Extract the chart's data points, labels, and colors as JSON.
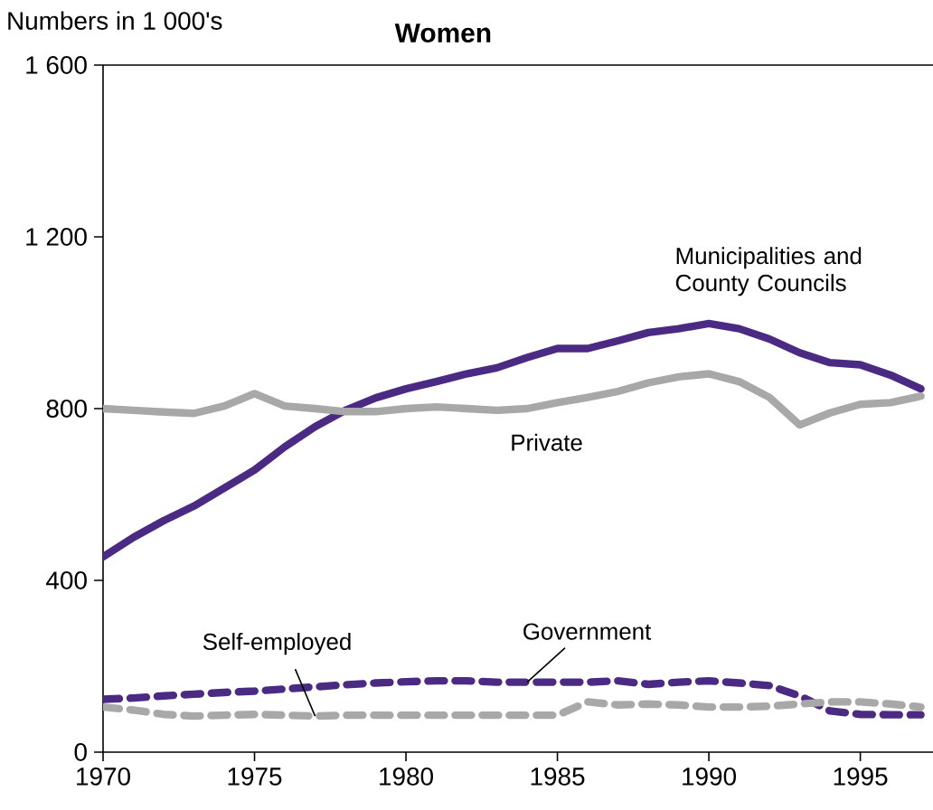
{
  "chart_data": {
    "type": "line",
    "title": "Women",
    "ylabel": "Numbers in 1 000's",
    "x": [
      1970,
      1971,
      1972,
      1973,
      1974,
      1975,
      1976,
      1977,
      1978,
      1979,
      1980,
      1981,
      1982,
      1983,
      1984,
      1985,
      1986,
      1987,
      1988,
      1989,
      1990,
      1991,
      1992,
      1993,
      1994,
      1995,
      1996,
      1997
    ],
    "xlim": [
      1970,
      1997.4
    ],
    "xticks": [
      1970,
      1975,
      1980,
      1985,
      1990,
      1995
    ],
    "ylim": [
      0,
      1600
    ],
    "yticks": [
      0,
      400,
      800,
      {
        "value": 1200,
        "label": "1 200"
      },
      {
        "value": 1600,
        "label": "1 600"
      }
    ],
    "grid": false,
    "marker": "none",
    "series": [
      {
        "color": "#4b2a84",
        "line_style": "solid",
        "values": [
          455,
          500,
          539,
          573,
          615,
          657,
          711,
          758,
          796,
          825,
          846,
          863,
          881,
          895,
          919,
          940,
          940,
          958,
          977,
          986,
          998,
          986,
          962,
          930,
          907,
          902,
          878,
          846
        ]
      },
      {
        "color": "#a8a8a8",
        "line_style": "solid",
        "values": [
          800,
          796,
          792,
          789,
          806,
          835,
          806,
          800,
          793,
          793,
          800,
          804,
          800,
          796,
          800,
          814,
          826,
          840,
          860,
          874,
          881,
          863,
          826,
          762,
          790,
          810,
          814,
          829
        ]
      },
      {
        "color": "#4b2a84",
        "line_style": "dashed",
        "values": [
          123,
          126,
          131,
          135,
          139,
          142,
          147,
          152,
          157,
          161,
          164,
          166,
          166,
          163,
          163,
          163,
          163,
          166,
          158,
          163,
          166,
          161,
          155,
          131,
          96,
          88,
          87,
          87
        ]
      },
      {
        "color": "#a8a8a8",
        "line_style": "dashed",
        "values": [
          105,
          98,
          88,
          84,
          86,
          88,
          86,
          84,
          86,
          86,
          86,
          86,
          86,
          86,
          86,
          86,
          117,
          110,
          112,
          110,
          105,
          105,
          107,
          112,
          117,
          117,
          112,
          105
        ]
      }
    ],
    "annotations": [
      {
        "text": "Municipalities and County Councils",
        "x": 1993,
        "y": 930
      },
      {
        "text": "Private",
        "x": 1985,
        "y": 814
      },
      {
        "text": "Self-employed",
        "x": 1977,
        "y": 84
      },
      {
        "text": "Government",
        "x": 1984,
        "y": 163
      }
    ]
  }
}
